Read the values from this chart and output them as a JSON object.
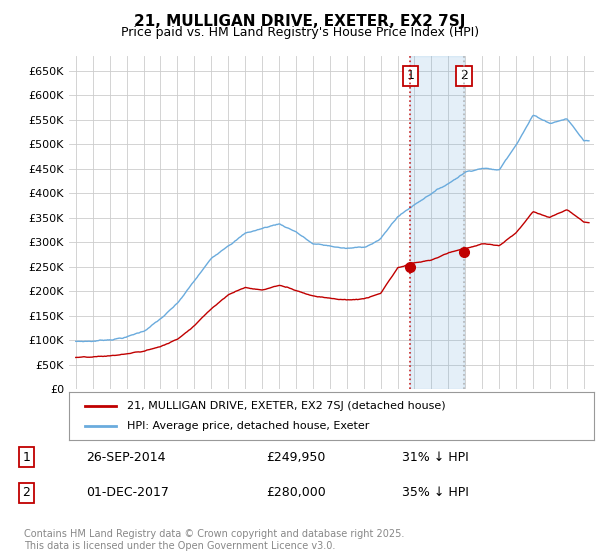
{
  "title": "21, MULLIGAN DRIVE, EXETER, EX2 7SJ",
  "subtitle": "Price paid vs. HM Land Registry's House Price Index (HPI)",
  "ylabel_ticks": [
    "£0",
    "£50K",
    "£100K",
    "£150K",
    "£200K",
    "£250K",
    "£300K",
    "£350K",
    "£400K",
    "£450K",
    "£500K",
    "£550K",
    "£600K",
    "£650K"
  ],
  "ytick_values": [
    0,
    50000,
    100000,
    150000,
    200000,
    250000,
    300000,
    350000,
    400000,
    450000,
    500000,
    550000,
    600000,
    650000
  ],
  "ylim": [
    0,
    680000
  ],
  "hpi_color": "#6aabdd",
  "price_color": "#c00000",
  "sale1_price": 249950,
  "sale1_date": "26-SEP-2014",
  "sale1_hpi_pct": "31% ↓ HPI",
  "sale1_year": 2014.75,
  "sale2_price": 280000,
  "sale2_date": "01-DEC-2017",
  "sale2_hpi_pct": "35% ↓ HPI",
  "sale2_year": 2017.92,
  "legend_line1": "21, MULLIGAN DRIVE, EXETER, EX2 7SJ (detached house)",
  "legend_line2": "HPI: Average price, detached house, Exeter",
  "footer": "Contains HM Land Registry data © Crown copyright and database right 2025.\nThis data is licensed under the Open Government Licence v3.0.",
  "background_color": "#ffffff",
  "grid_color": "#cccccc",
  "key_hpi_years": [
    1995,
    1996,
    1997,
    1998,
    1999,
    2000,
    2001,
    2002,
    2003,
    2004,
    2005,
    2006,
    2007,
    2008,
    2009,
    2010,
    2011,
    2012,
    2013,
    2014,
    2015,
    2016,
    2017,
    2018,
    2019,
    2020,
    2021,
    2022,
    2023,
    2024,
    2025
  ],
  "key_hpi_vals": [
    97000,
    98000,
    102000,
    108000,
    120000,
    145000,
    175000,
    220000,
    265000,
    295000,
    320000,
    330000,
    340000,
    325000,
    300000,
    295000,
    290000,
    292000,
    310000,
    355000,
    380000,
    405000,
    425000,
    450000,
    460000,
    455000,
    510000,
    570000,
    555000,
    565000,
    520000
  ],
  "key_price_years": [
    1995,
    1996,
    1997,
    1998,
    1999,
    2000,
    2001,
    2002,
    2003,
    2004,
    2005,
    2006,
    2007,
    2008,
    2009,
    2010,
    2011,
    2012,
    2013,
    2014,
    2015,
    2016,
    2017,
    2018,
    2019,
    2020,
    2021,
    2022,
    2023,
    2024,
    2025
  ],
  "key_price_vals": [
    65000,
    64000,
    66000,
    70000,
    75000,
    85000,
    100000,
    130000,
    165000,
    195000,
    210000,
    205000,
    215000,
    205000,
    195000,
    192000,
    188000,
    190000,
    200000,
    250000,
    260000,
    265000,
    280000,
    290000,
    300000,
    295000,
    320000,
    365000,
    355000,
    370000,
    345000
  ]
}
